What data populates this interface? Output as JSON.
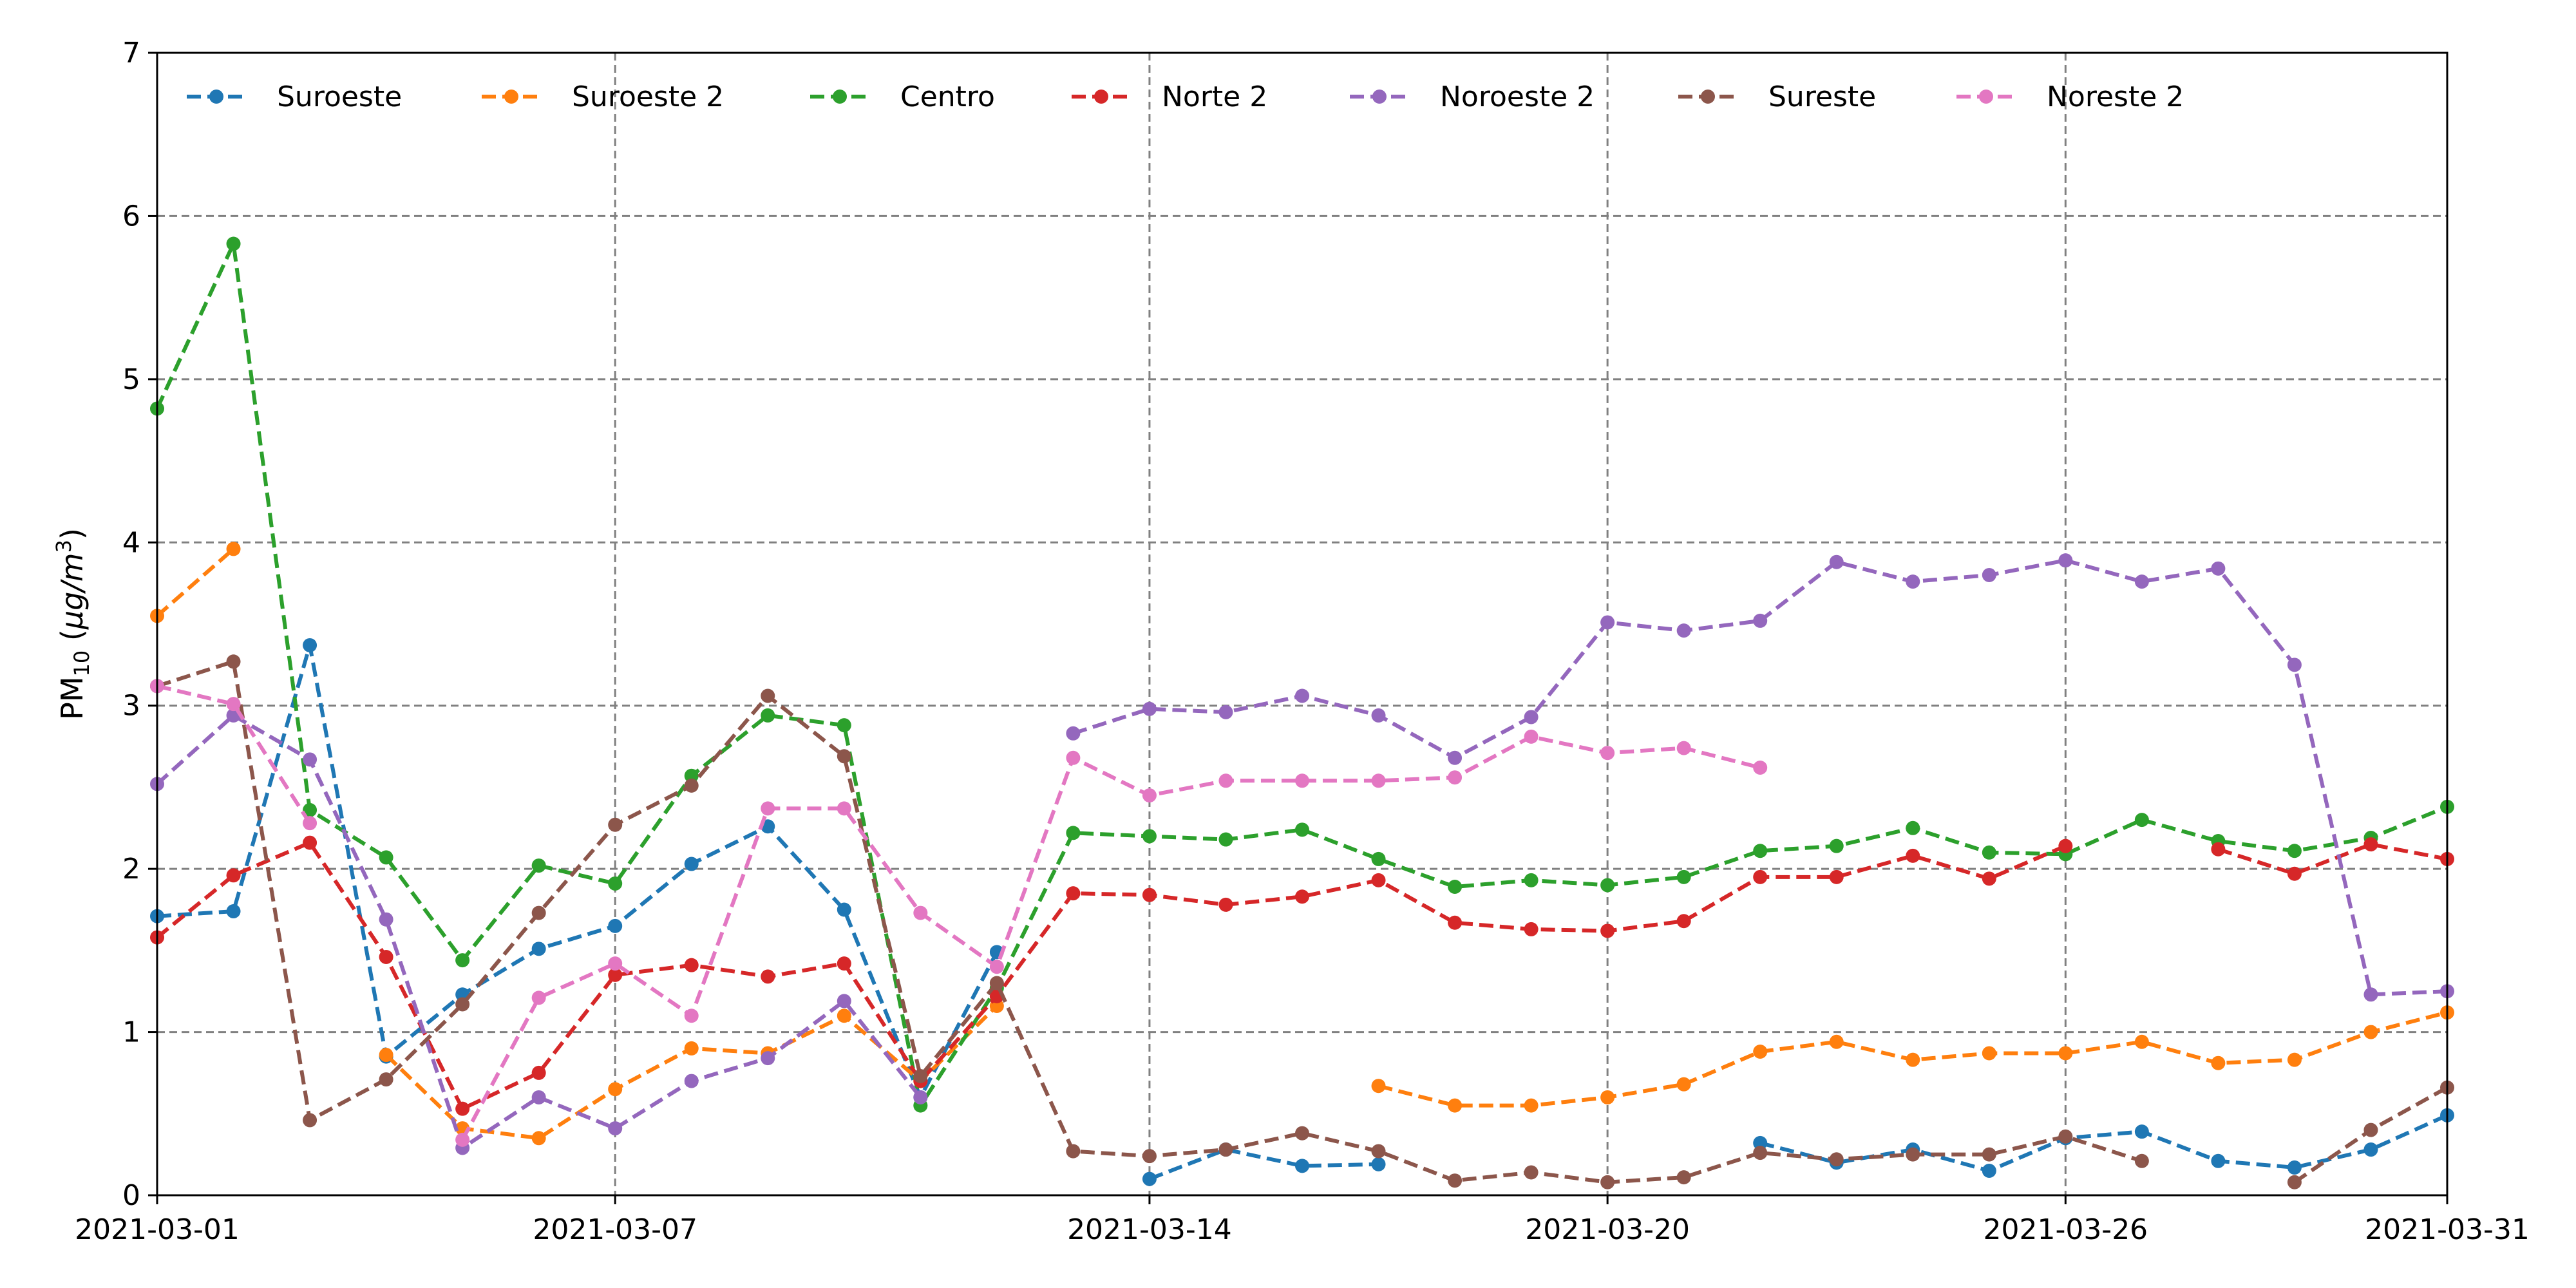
{
  "chart_data": {
    "type": "line",
    "title": "",
    "xlabel": "",
    "ylabel": "PM",
    "ylabel_sub": "10",
    "ylabel_unit_prefix": " (",
    "ylabel_unit": "μg/m",
    "ylabel_sup": "3",
    "ylabel_unit_suffix": ")",
    "xlim": [
      "2021-03-01",
      "2021-03-31"
    ],
    "ylim": [
      0,
      7
    ],
    "yticks": [
      0,
      1,
      2,
      3,
      4,
      5,
      6,
      7
    ],
    "xticks": [
      "2021-03-01",
      "2021-03-07",
      "2021-03-14",
      "2021-03-20",
      "2021-03-26",
      "2021-03-31"
    ],
    "grid": true,
    "legend_position": "top",
    "line_style": "dashed",
    "marker": "circle",
    "x": [
      "2021-03-01",
      "2021-03-02",
      "2021-03-03",
      "2021-03-04",
      "2021-03-05",
      "2021-03-06",
      "2021-03-07",
      "2021-03-08",
      "2021-03-09",
      "2021-03-10",
      "2021-03-11",
      "2021-03-12",
      "2021-03-13",
      "2021-03-14",
      "2021-03-15",
      "2021-03-16",
      "2021-03-17",
      "2021-03-18",
      "2021-03-19",
      "2021-03-20",
      "2021-03-21",
      "2021-03-22",
      "2021-03-23",
      "2021-03-24",
      "2021-03-25",
      "2021-03-26",
      "2021-03-27",
      "2021-03-28",
      "2021-03-29",
      "2021-03-30",
      "2021-03-31"
    ],
    "series": [
      {
        "name": "Suroeste",
        "color": "#1f77b4",
        "values": [
          1.71,
          1.74,
          3.37,
          0.85,
          1.23,
          1.51,
          1.65,
          2.03,
          2.26,
          1.75,
          0.6,
          1.49,
          null,
          0.1,
          0.28,
          0.18,
          0.19,
          null,
          null,
          null,
          null,
          0.32,
          0.2,
          0.28,
          0.15,
          0.35,
          0.39,
          0.21,
          0.17,
          0.28,
          0.49
        ]
      },
      {
        "name": "Suroeste 2",
        "color": "#ff7f0e",
        "values": [
          3.55,
          3.96,
          null,
          0.86,
          0.41,
          0.35,
          0.65,
          0.9,
          0.87,
          1.1,
          0.7,
          1.16,
          null,
          null,
          null,
          null,
          0.67,
          0.55,
          0.55,
          0.6,
          0.68,
          0.88,
          0.94,
          0.83,
          0.87,
          0.87,
          0.94,
          0.81,
          0.83,
          1.0,
          1.12
        ]
      },
      {
        "name": "Centro",
        "color": "#2ca02c",
        "values": [
          4.82,
          5.83,
          2.36,
          2.07,
          1.44,
          2.02,
          1.91,
          2.57,
          2.94,
          2.88,
          0.55,
          1.27,
          2.22,
          2.2,
          2.18,
          2.24,
          2.06,
          1.89,
          1.93,
          1.9,
          1.95,
          2.11,
          2.14,
          2.25,
          2.1,
          2.09,
          2.3,
          2.17,
          2.11,
          2.19,
          2.38
        ]
      },
      {
        "name": "Norte 2",
        "color": "#d62728",
        "values": [
          1.58,
          1.96,
          2.16,
          1.46,
          0.53,
          0.75,
          1.35,
          1.41,
          1.34,
          1.42,
          0.7,
          1.22,
          1.85,
          1.84,
          1.78,
          1.83,
          1.93,
          1.67,
          1.63,
          1.62,
          1.68,
          1.95,
          1.95,
          2.08,
          1.94,
          2.14,
          null,
          2.12,
          1.97,
          2.15,
          2.06
        ]
      },
      {
        "name": "Noroeste 2",
        "color": "#9467bd",
        "values": [
          2.52,
          2.94,
          2.67,
          1.69,
          0.29,
          0.6,
          0.41,
          0.7,
          0.84,
          1.19,
          0.6,
          null,
          2.83,
          2.98,
          2.96,
          3.06,
          2.94,
          2.68,
          2.93,
          3.51,
          3.46,
          3.52,
          3.88,
          3.76,
          3.8,
          3.89,
          3.76,
          3.84,
          3.25,
          1.23,
          1.25
        ]
      },
      {
        "name": "Sureste",
        "color": "#8c564b",
        "values": [
          3.12,
          3.27,
          0.46,
          0.71,
          1.17,
          1.73,
          2.27,
          2.51,
          3.06,
          2.69,
          0.73,
          1.3,
          0.27,
          0.24,
          0.28,
          0.38,
          0.27,
          0.09,
          0.14,
          0.08,
          0.11,
          0.26,
          0.22,
          0.25,
          0.25,
          0.36,
          0.21,
          null,
          0.08,
          0.4,
          0.66
        ]
      },
      {
        "name": "Noreste 2",
        "color": "#e377c2",
        "values": [
          3.12,
          3.01,
          2.28,
          null,
          0.34,
          1.21,
          1.42,
          1.1,
          2.37,
          2.37,
          1.73,
          1.4,
          2.68,
          2.45,
          2.54,
          2.54,
          2.54,
          2.56,
          2.81,
          2.71,
          2.74,
          2.62,
          null,
          null,
          null,
          null,
          null,
          null,
          null,
          null,
          null
        ]
      }
    ]
  }
}
